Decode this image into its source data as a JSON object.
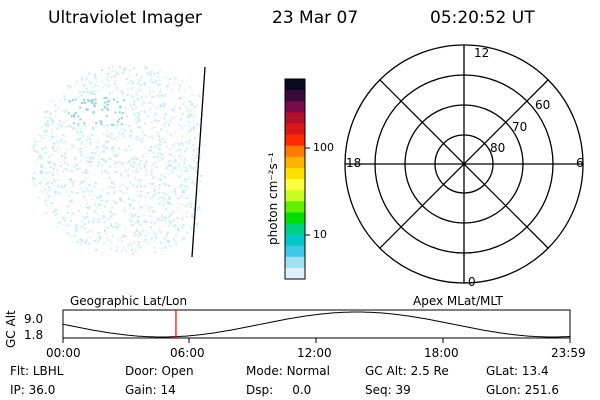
{
  "header": {
    "instrument": "Ultraviolet Imager",
    "date": "23 Mar 07",
    "time": "05:20:52 UT"
  },
  "colorbar": {
    "label": "photon cm⁻²s⁻¹",
    "ticks": [
      "100",
      "10"
    ],
    "colors": [
      "#0a0a1e",
      "#3a0a3a",
      "#7a0a4a",
      "#b0102a",
      "#d81818",
      "#ff2a00",
      "#ff7a00",
      "#ffb000",
      "#ffe000",
      "#ffff40",
      "#c8ff20",
      "#60f000",
      "#00e000",
      "#00d080",
      "#00c8c8",
      "#40c8e8",
      "#a0e0f0",
      "#e0f0f8"
    ]
  },
  "polar": {
    "labels": [
      "12",
      "18",
      "6",
      "0"
    ],
    "lat_labels": [
      "60",
      "70",
      "80"
    ]
  },
  "timeline": {
    "left_title": "Geographic Lat/Lon",
    "right_title": "Apex MLat/MLT",
    "ylabel": "GC Alt",
    "ymax": "9.0",
    "ymin": "1.8",
    "xticks": [
      "00:00",
      "06:00",
      "12:00",
      "18:00",
      "23:59"
    ],
    "marker_color": "#ff0000",
    "current_fraction": 0.2228
  },
  "status": {
    "row1": [
      {
        "label": "Flt:",
        "value": "LBHL"
      },
      {
        "label": "Door:",
        "value": "Open"
      },
      {
        "label": "Mode:",
        "value": "Normal"
      },
      {
        "label": "GC Alt:",
        "value": "2.5 Re"
      },
      {
        "label": "GLat:",
        "value": "13.4"
      }
    ],
    "row2": [
      {
        "label": "IP:",
        "value": "36.0"
      },
      {
        "label": "Gain:",
        "value": "14"
      },
      {
        "label": "Dsp:",
        "value": "0.0"
      },
      {
        "label": "Seq:",
        "value": "39"
      },
      {
        "label": "GLon:",
        "value": "251.6"
      }
    ]
  }
}
